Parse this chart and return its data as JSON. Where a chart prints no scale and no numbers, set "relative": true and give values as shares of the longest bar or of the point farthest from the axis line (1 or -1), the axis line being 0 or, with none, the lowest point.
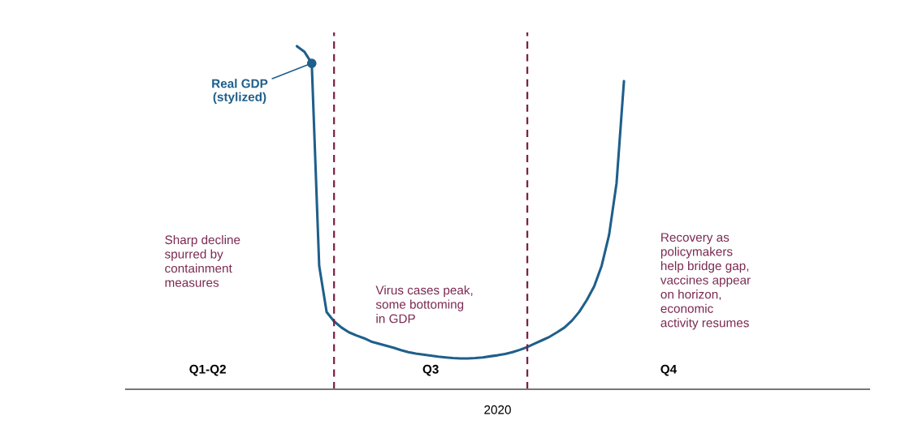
{
  "chart_data": {
    "type": "line",
    "relative": true,
    "xlabel": "2020",
    "categories": [
      null,
      null,
      null,
      null,
      null,
      null,
      null,
      null,
      null,
      null,
      null,
      "Q1-Q2",
      null,
      null,
      null,
      null,
      null,
      null,
      null,
      null,
      null,
      null,
      null,
      null,
      null,
      null,
      null,
      null,
      null,
      null,
      null,
      null,
      null,
      null,
      null,
      null,
      null,
      null,
      null,
      null,
      null,
      "Q3",
      null,
      null,
      null,
      null,
      null,
      null,
      null,
      null,
      null,
      null,
      null,
      null,
      null,
      null,
      null,
      null,
      null,
      null,
      null,
      null,
      null,
      null,
      null,
      null,
      null,
      null,
      null,
      null,
      null,
      null,
      null,
      "Q4",
      null,
      null,
      null,
      null,
      null,
      null,
      null,
      null,
      null,
      null,
      null,
      null,
      null,
      null,
      null,
      null,
      null,
      null,
      null,
      null,
      null,
      null,
      null,
      null,
      null,
      null,
      null
    ],
    "series": [
      {
        "color": "#1f5f8b",
        "values": [
          null,
          null,
          null,
          null,
          null,
          null,
          null,
          null,
          null,
          null,
          null,
          null,
          null,
          null,
          null,
          null,
          null,
          null,
          null,
          null,
          null,
          null,
          null,
          1.0,
          0.984,
          0.95,
          0.36,
          0.225,
          0.198,
          0.18,
          0.166,
          0.157,
          0.149,
          0.139,
          0.133,
          0.127,
          0.121,
          0.114,
          0.108,
          0.104,
          0.101,
          0.098,
          0.095,
          0.093,
          0.091,
          0.09,
          0.09,
          0.091,
          0.093,
          0.096,
          0.099,
          0.103,
          0.108,
          0.115,
          0.123,
          0.133,
          0.143,
          0.153,
          0.166,
          0.18,
          0.2,
          0.226,
          0.26,
          0.3,
          0.36,
          0.45,
          0.6,
          0.898,
          null,
          null,
          null,
          null,
          null,
          null,
          null,
          null,
          null,
          null,
          null,
          null,
          null,
          null,
          null,
          null,
          null,
          null,
          null,
          null,
          null,
          null,
          null,
          null,
          null,
          null,
          null,
          null,
          null,
          null,
          null,
          null,
          null
        ]
      },
      {
        "type": "scatter",
        "marker": "circle",
        "color": "#1f5f8b",
        "values": [
          null,
          null,
          null,
          null,
          null,
          null,
          null,
          null,
          null,
          null,
          null,
          null,
          null,
          null,
          null,
          null,
          null,
          null,
          null,
          null,
          null,
          null,
          null,
          null,
          null,
          0.95,
          null,
          null,
          null,
          null,
          null,
          null,
          null,
          null,
          null,
          null,
          null,
          null,
          null,
          null,
          null,
          null,
          null,
          null,
          null,
          null,
          null,
          null,
          null,
          null,
          null,
          null,
          null,
          null,
          null,
          null,
          null,
          null,
          null,
          null,
          null,
          null,
          null,
          null,
          null,
          null,
          null,
          null,
          null,
          null,
          null,
          null,
          null,
          null,
          null,
          null,
          null,
          null,
          null,
          null,
          null,
          null,
          null,
          null,
          null,
          null,
          null,
          null,
          null,
          null,
          null,
          null,
          null,
          null,
          null,
          null,
          null,
          null,
          null,
          null,
          null
        ]
      }
    ],
    "annotations": [
      "Real GDP\n(stylized)",
      "Sharp decline\nspurred by\ncontainment\nmeasures",
      "Virus cases peak,\nsome bottoming\nin GDP",
      "Recovery as\npolicymakers\nhelp bridge gap,\nvaccines appear\non horizon,\neconomic\nactivity resumes"
    ],
    "grid": false,
    "legend": false
  }
}
